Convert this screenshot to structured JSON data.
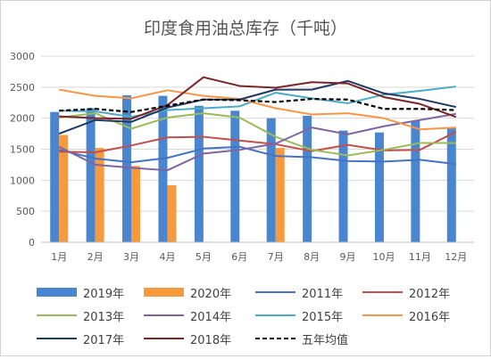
{
  "chart_data": {
    "type": "bar+line",
    "title": "印度食用油总库存（千吨）",
    "categories": [
      "1月",
      "2月",
      "3月",
      "4月",
      "5月",
      "6月",
      "7月",
      "8月",
      "9月",
      "10月",
      "11月",
      "12月"
    ],
    "ylim": [
      0,
      3000
    ],
    "yticks": [
      "0",
      "500",
      "1000",
      "1500",
      "2000",
      "2500",
      "3000"
    ],
    "grid": "horizontal",
    "legend_position": "bottom",
    "bar_series": [
      {
        "name": "2019年",
        "color": "#4A86D0",
        "values": [
          2100,
          2160,
          2370,
          2360,
          2200,
          2120,
          2000,
          2040,
          1800,
          1770,
          1960,
          1840
        ]
      },
      {
        "name": "2020年",
        "color": "#F79A3E",
        "values": [
          1730,
          1520,
          1230,
          920,
          null,
          null,
          1520,
          null,
          null,
          null,
          null,
          null
        ]
      }
    ],
    "line_series": [
      {
        "name": "2011年",
        "color": "#4472C4",
        "dash": false,
        "values": [
          1490,
          1350,
          1290,
          1360,
          1510,
          1540,
          1390,
          1370,
          1310,
          1300,
          1330,
          1260
        ]
      },
      {
        "name": "2012年",
        "color": "#C0504D",
        "dash": false,
        "values": [
          1460,
          1450,
          1560,
          1690,
          1700,
          1640,
          1580,
          1470,
          1570,
          1480,
          1490,
          1780
        ]
      },
      {
        "name": "2013年",
        "color": "#9BBB59",
        "dash": false,
        "values": [
          2010,
          2080,
          1830,
          2010,
          2080,
          2010,
          1700,
          1490,
          1400,
          1490,
          1600,
          1600
        ]
      },
      {
        "name": "2014年",
        "color": "#8064A2",
        "dash": false,
        "values": [
          1540,
          1250,
          1200,
          1160,
          1430,
          1490,
          1590,
          1850,
          1740,
          1870,
          1970,
          2070
        ]
      },
      {
        "name": "2015年",
        "color": "#4BACC6",
        "dash": false,
        "values": [
          2120,
          2110,
          2020,
          2130,
          2160,
          2190,
          2410,
          2320,
          2240,
          2380,
          2440,
          2510
        ]
      },
      {
        "name": "2016年",
        "color": "#F79646",
        "dash": false,
        "values": [
          2460,
          2360,
          2320,
          2450,
          2360,
          2310,
          2160,
          2060,
          2080,
          2000,
          1820,
          1850
        ]
      },
      {
        "name": "2017年",
        "color": "#1F3864",
        "dash": false,
        "values": [
          1750,
          1970,
          1940,
          2170,
          2300,
          2300,
          2460,
          2460,
          2600,
          2400,
          2310,
          2180
        ]
      },
      {
        "name": "2018年",
        "color": "#7B2626",
        "dash": false,
        "values": [
          2030,
          2000,
          1990,
          2210,
          2660,
          2520,
          2490,
          2580,
          2560,
          2340,
          2230,
          2020
        ]
      },
      {
        "name": "五年均值",
        "color": "#000000",
        "dash": true,
        "values": [
          2120,
          2150,
          2100,
          2200,
          2300,
          2290,
          2260,
          2310,
          2300,
          2150,
          2150,
          2130
        ]
      }
    ]
  }
}
